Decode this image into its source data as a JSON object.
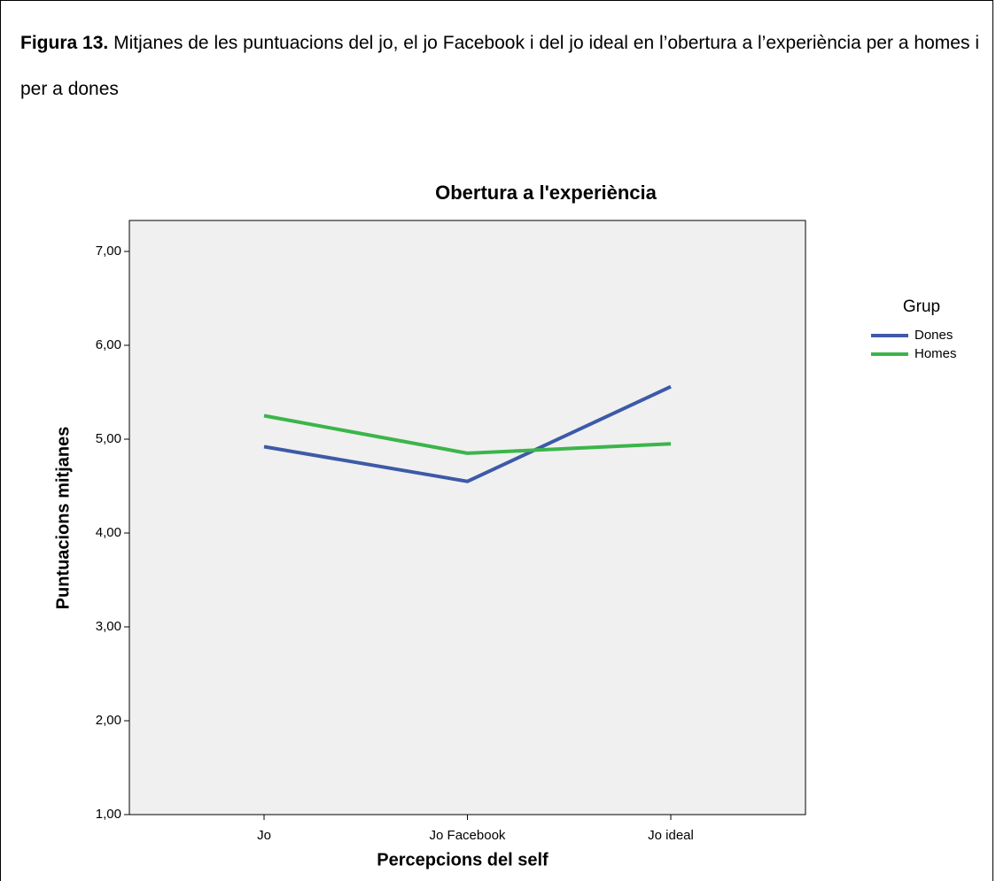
{
  "caption": {
    "label": "Figura 13.",
    "text": "Mitjanes de les puntuacions del jo, el jo Facebook i del jo ideal en l’obertura a l’experiència per a homes i per a dones"
  },
  "chart_data": {
    "type": "line",
    "title": "Obertura a l'experiència",
    "x_label": "Percepcions del self",
    "y_label": "Puntuacions mitjanes",
    "categories": [
      "Jo",
      "Jo Facebook",
      "Jo ideal"
    ],
    "series": [
      {
        "name": "Dones",
        "color": "#3d5aa8",
        "values": [
          4.92,
          4.55,
          5.56
        ]
      },
      {
        "name": "Homes",
        "color": "#3bb54a",
        "values": [
          5.25,
          4.85,
          4.95
        ]
      }
    ],
    "ylim": [
      1,
      7.33
    ],
    "yticks": [
      {
        "value": 1,
        "label": "1,00"
      },
      {
        "value": 2,
        "label": "2,00"
      },
      {
        "value": 3,
        "label": "3,00"
      },
      {
        "value": 4,
        "label": "4,00"
      },
      {
        "value": 5,
        "label": "5,00"
      },
      {
        "value": 6,
        "label": "6,00"
      },
      {
        "value": 7,
        "label": "7,00"
      }
    ],
    "legend_title": "Grup",
    "legend_position": "right"
  }
}
